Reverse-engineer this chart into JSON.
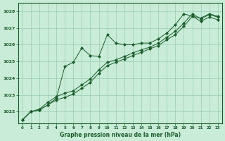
{
  "bg_color": "#c8ecd8",
  "grid_color": "#96ccb0",
  "line_color": "#1a5c2a",
  "marker_color": "#1a5c2a",
  "title": "Graphe pression niveau de la mer (hPa)",
  "title_color": "#1a5c2a",
  "xlim": [
    -0.5,
    23.5
  ],
  "ylim": [
    1021.3,
    1028.5
  ],
  "yticks": [
    1022,
    1023,
    1024,
    1025,
    1026,
    1027,
    1028
  ],
  "xticks": [
    0,
    1,
    2,
    3,
    4,
    5,
    6,
    7,
    8,
    9,
    10,
    11,
    12,
    13,
    14,
    15,
    16,
    17,
    18,
    19,
    20,
    21,
    22,
    23
  ],
  "series": [
    {
      "x": [
        0,
        1,
        2,
        3,
        4,
        5,
        6,
        7,
        8,
        9,
        10,
        11,
        12,
        13,
        14,
        15,
        16,
        17,
        18,
        19,
        20,
        21,
        22,
        23
      ],
      "y": [
        1021.5,
        1022.0,
        1022.1,
        1022.4,
        1022.8,
        1024.7,
        1024.95,
        1025.8,
        1025.35,
        1025.3,
        1026.6,
        1026.1,
        1026.0,
        1026.0,
        1026.1,
        1026.1,
        1026.35,
        1026.7,
        1027.2,
        1027.85,
        1027.7,
        1027.6,
        1027.85,
        1027.7
      ]
    },
    {
      "x": [
        0,
        1,
        2,
        3,
        4,
        5,
        6,
        7,
        8,
        9,
        10,
        11,
        12,
        13,
        14,
        15,
        16,
        17,
        18,
        19,
        20,
        21,
        22,
        23
      ],
      "y": [
        1021.5,
        1022.0,
        1022.15,
        1022.55,
        1022.9,
        1023.1,
        1023.25,
        1023.6,
        1023.95,
        1024.5,
        1024.95,
        1025.1,
        1025.3,
        1025.5,
        1025.7,
        1025.85,
        1026.1,
        1026.45,
        1026.8,
        1027.3,
        1027.85,
        1027.55,
        1027.8,
        1027.65
      ]
    },
    {
      "x": [
        0,
        1,
        2,
        3,
        4,
        5,
        6,
        7,
        8,
        9,
        10,
        11,
        12,
        13,
        14,
        15,
        16,
        17,
        18,
        19,
        20,
        21,
        22,
        23
      ],
      "y": [
        1021.5,
        1022.0,
        1022.1,
        1022.4,
        1022.7,
        1022.85,
        1023.05,
        1023.4,
        1023.75,
        1024.3,
        1024.75,
        1024.95,
        1025.15,
        1025.35,
        1025.55,
        1025.75,
        1025.95,
        1026.3,
        1026.6,
        1027.1,
        1027.7,
        1027.4,
        1027.65,
        1027.5
      ]
    }
  ]
}
